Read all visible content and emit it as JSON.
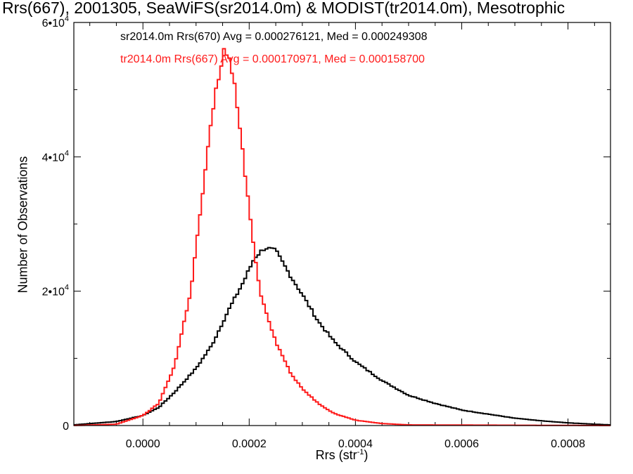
{
  "chart_data": {
    "type": "line",
    "title": "Rrs(667), 2001305, SeaWiFS(sr2014.0m) & MODIST(tr2014.0m), Mesotrophic",
    "xlabel_prefix": "Rrs (str",
    "xlabel_exp": "-1",
    "xlabel_suffix": ")",
    "ylabel": "Number of Observations",
    "xlim": [
      -0.00013,
      0.00088
    ],
    "ylim": [
      0,
      60000
    ],
    "xticks": [
      {
        "value": 0.0,
        "label": "0.0000"
      },
      {
        "value": 0.0002,
        "label": "0.0002"
      },
      {
        "value": 0.0004,
        "label": "0.0004"
      },
      {
        "value": 0.0006,
        "label": "0.0006"
      },
      {
        "value": 0.0008,
        "label": "0.0008"
      }
    ],
    "yticks": [
      {
        "value": 0,
        "base": "0",
        "exp": ""
      },
      {
        "value": 20000,
        "base": "2•10",
        "exp": "4"
      },
      {
        "value": 40000,
        "base": "4•10",
        "exp": "4"
      },
      {
        "value": 60000,
        "base": "6•10",
        "exp": "4"
      }
    ],
    "x_minor_step": 5e-05,
    "y_minor_step": 10000,
    "bin_width": 5e-06,
    "series": [
      {
        "name": "sr2014.0m Rrs(670)",
        "legend": "sr2014.0m Rrs(670)  Avg = 0.000276121, Med = 0.000249308",
        "color": "#000000",
        "points": [
          [
            -0.00013,
            100
          ],
          [
            -5e-05,
            600
          ],
          [
            0.0,
            1500
          ],
          [
            3e-05,
            2700
          ],
          [
            6e-05,
            5000
          ],
          [
            0.0001,
            8500
          ],
          [
            0.00013,
            12000
          ],
          [
            0.00016,
            17000
          ],
          [
            0.00019,
            21500
          ],
          [
            0.00021,
            25000
          ],
          [
            0.00023,
            26500
          ],
          [
            0.00025,
            26000
          ],
          [
            0.00028,
            22000
          ],
          [
            0.0003,
            19500
          ],
          [
            0.00033,
            15500
          ],
          [
            0.00036,
            12500
          ],
          [
            0.0004,
            9500
          ],
          [
            0.00045,
            6700
          ],
          [
            0.0005,
            4500
          ],
          [
            0.00055,
            3300
          ],
          [
            0.0006,
            2300
          ],
          [
            0.00065,
            1700
          ],
          [
            0.0007,
            1100
          ],
          [
            0.00075,
            700
          ],
          [
            0.0008,
            400
          ],
          [
            0.00085,
            200
          ],
          [
            0.00088,
            100
          ]
        ]
      },
      {
        "name": "tr2014.0m Rrs(667)",
        "legend": "tr2014.0m Rrs(667)  Avg = 0.000170971, Med = 0.000158700",
        "color": "#ff1a1a",
        "points": [
          [
            -0.00013,
            0
          ],
          [
            -5e-05,
            200
          ],
          [
            0.0,
            1500
          ],
          [
            3e-05,
            3300
          ],
          [
            6e-05,
            9000
          ],
          [
            9e-05,
            20000
          ],
          [
            0.00011,
            33000
          ],
          [
            0.00013,
            46000
          ],
          [
            0.00014,
            51000
          ],
          [
            0.000155,
            56500
          ],
          [
            0.00017,
            52000
          ],
          [
            0.00018,
            46000
          ],
          [
            0.0002,
            32000
          ],
          [
            0.00022,
            20000
          ],
          [
            0.00025,
            12500
          ],
          [
            0.00028,
            7500
          ],
          [
            0.0003,
            5500
          ],
          [
            0.00033,
            3300
          ],
          [
            0.00036,
            1800
          ],
          [
            0.0004,
            800
          ],
          [
            0.00045,
            300
          ],
          [
            0.0005,
            100
          ],
          [
            0.00088,
            0
          ]
        ]
      }
    ]
  }
}
